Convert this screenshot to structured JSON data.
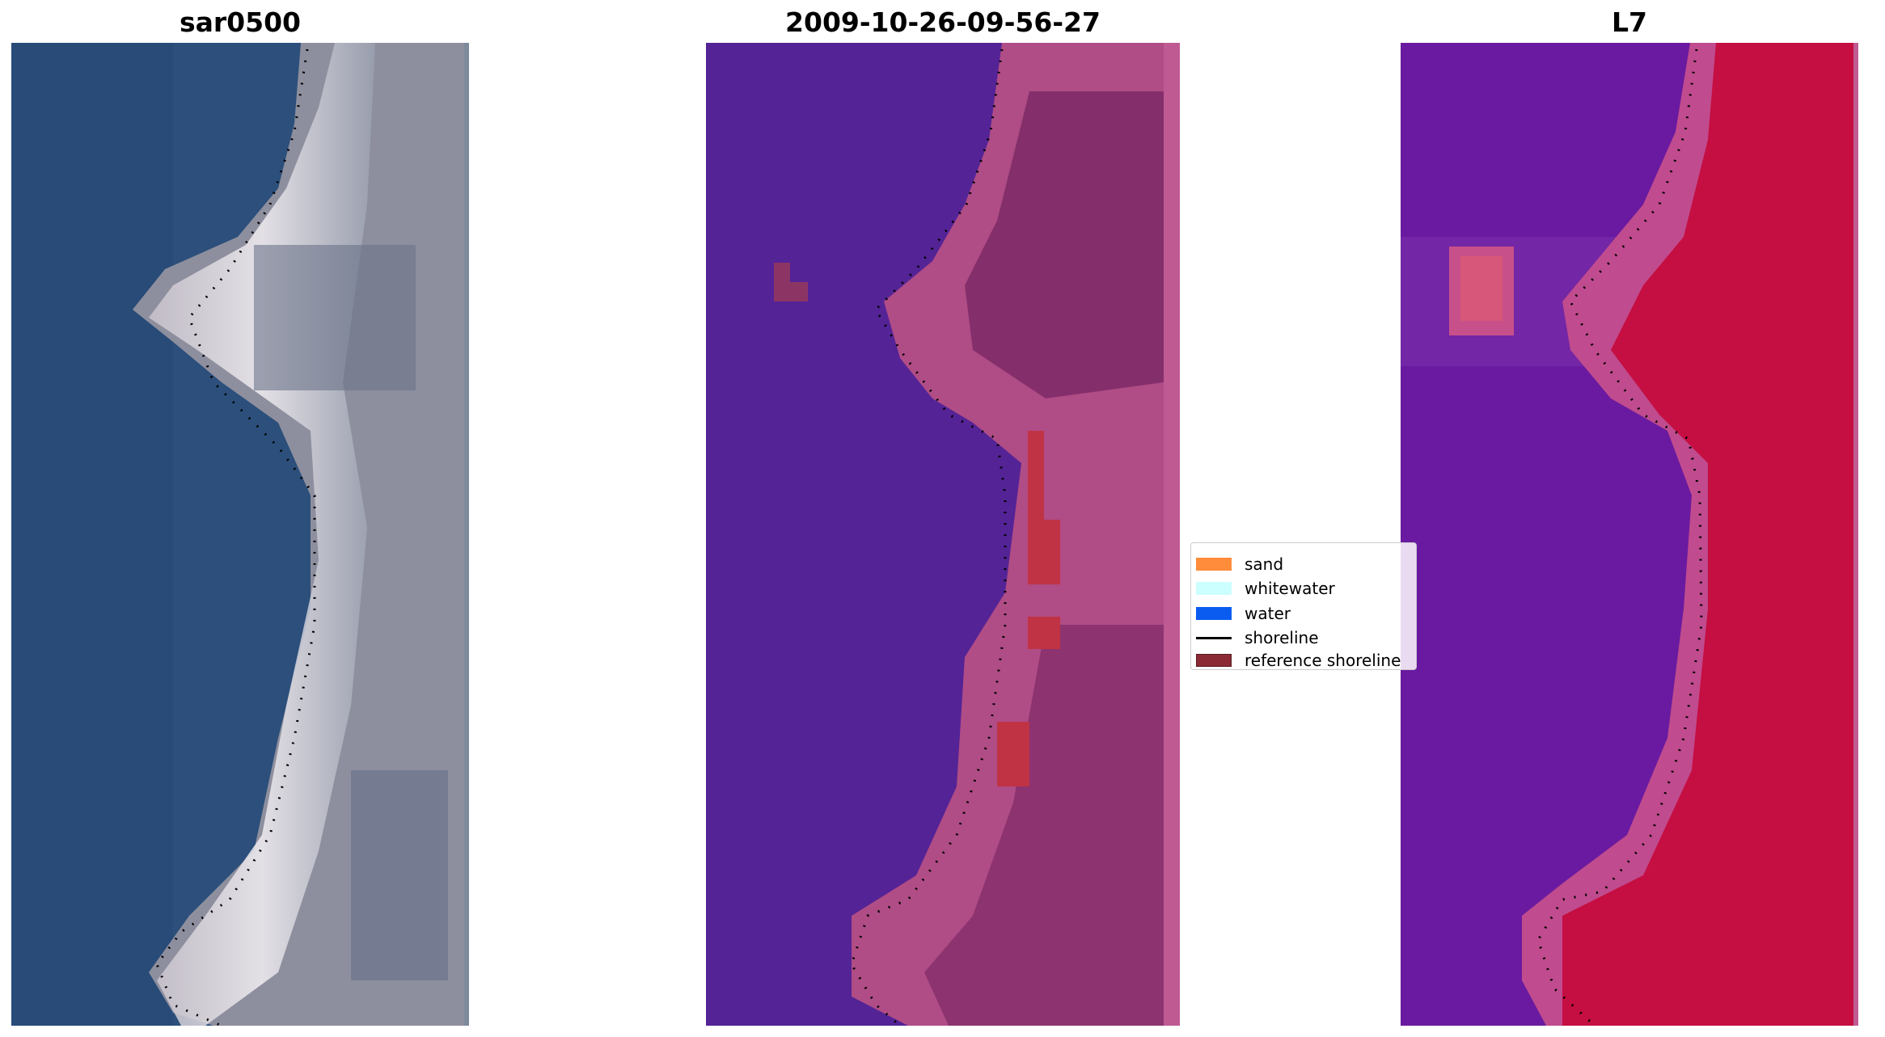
{
  "panels": {
    "left": {
      "title": "sar0500"
    },
    "middle": {
      "title": "2009-10-26-09-56-27"
    },
    "right": {
      "title": "L7"
    }
  },
  "legend": {
    "items": [
      {
        "label": "sand",
        "kind": "patch",
        "color": "#ff8c3a"
      },
      {
        "label": "whitewater",
        "kind": "patch",
        "color": "#ccffff"
      },
      {
        "label": "water",
        "kind": "patch",
        "color": "#0a5cf0"
      },
      {
        "label": "shoreline",
        "kind": "line",
        "color": "#000000"
      },
      {
        "label": "reference shoreline",
        "kind": "patch",
        "color": "#8b2a35"
      }
    ]
  },
  "colors": {
    "rgb_water": "#2a4f7d",
    "rgb_sand": "#d8cfcf",
    "class_water": "#542396",
    "class_land": "#b04c86",
    "class_land_dark": "#7d2a66",
    "class_sand_red": "#c03344",
    "mndwi_water": "#6a1aa0",
    "mndwi_land": "#c5083a",
    "shoreline": "#000000"
  }
}
